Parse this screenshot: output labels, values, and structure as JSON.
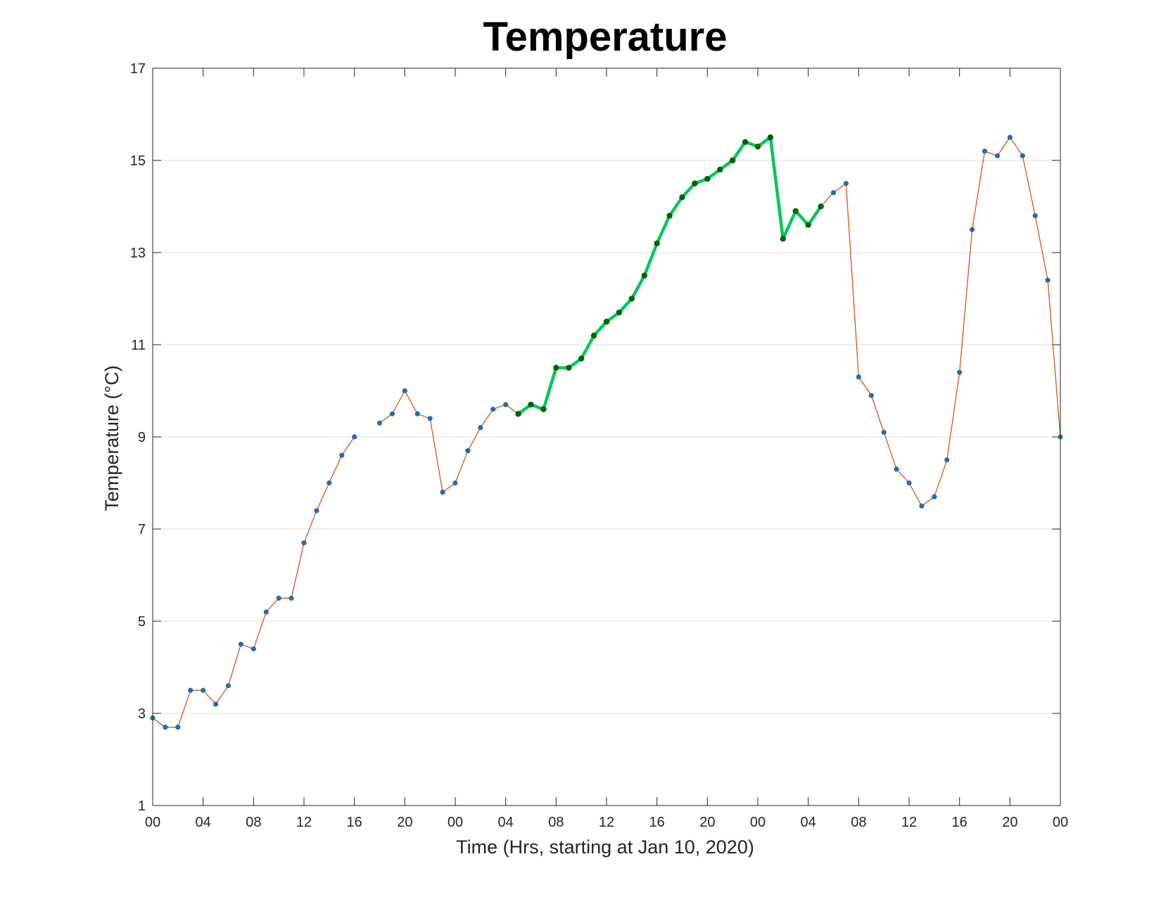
{
  "chart_data": {
    "type": "line",
    "title": "Temperature",
    "xlabel": "Time (Hrs, starting at Jan 10, 2020)",
    "ylabel": "Temperature (°C)",
    "ylim": [
      1,
      17
    ],
    "xlim": [
      0,
      72
    ],
    "grid": "horizontal",
    "x_tick_values": [
      0,
      4,
      8,
      12,
      16,
      20,
      24,
      28,
      32,
      36,
      40,
      44,
      48,
      52,
      56,
      60,
      64,
      68,
      72
    ],
    "x_tick_labels": [
      "00",
      "04",
      "08",
      "12",
      "16",
      "20",
      "00",
      "04",
      "08",
      "12",
      "16",
      "20",
      "00",
      "04",
      "08",
      "12",
      "16",
      "20",
      "00"
    ],
    "y_ticks": [
      1,
      3,
      5,
      7,
      9,
      11,
      13,
      15,
      17
    ],
    "colors": {
      "line": "#d95319",
      "marker": "#1f6fb0",
      "highlight_line": "#00c85a",
      "highlight_marker": "#006400"
    },
    "series": [
      {
        "x": [
          0,
          1,
          2,
          3,
          4,
          5,
          6,
          7,
          8,
          9,
          10,
          11,
          12,
          13,
          14,
          15,
          16,
          17,
          18,
          19,
          20,
          21,
          22,
          23,
          24,
          25,
          26,
          27,
          28,
          29,
          30,
          31,
          32,
          33,
          34,
          35,
          36,
          37,
          38,
          39,
          40,
          41,
          42,
          43,
          44,
          45,
          46,
          47,
          48,
          49,
          50,
          51,
          52,
          53,
          54,
          55,
          56,
          57,
          58,
          59,
          60,
          61,
          62,
          63,
          64,
          65,
          66,
          67,
          68,
          69,
          70,
          71,
          72
        ],
        "y": [
          2.9,
          2.7,
          2.7,
          3.5,
          3.5,
          3.2,
          3.6,
          4.5,
          4.4,
          5.2,
          5.5,
          5.5,
          6.7,
          7.4,
          8.0,
          8.6,
          9.0,
          null,
          9.3,
          9.5,
          10.0,
          9.5,
          9.4,
          7.8,
          8.0,
          8.7,
          9.2,
          9.6,
          9.7,
          9.5,
          9.7,
          9.6,
          10.5,
          10.5,
          10.7,
          11.2,
          11.5,
          11.7,
          12.0,
          12.5,
          13.2,
          13.8,
          14.2,
          14.5,
          14.6,
          14.8,
          15.0,
          15.4,
          15.3,
          15.5,
          13.3,
          13.9,
          13.6,
          14.0,
          14.3,
          14.5,
          10.3,
          9.9,
          9.1,
          8.3,
          8.0,
          7.5,
          7.7,
          8.5,
          10.4,
          13.5,
          15.2,
          15.1,
          15.5,
          15.1,
          13.8,
          12.4,
          9.0
        ]
      },
      {
        "x": [
          29,
          30,
          31,
          32,
          33,
          34,
          35,
          36,
          37,
          38,
          39,
          40,
          41,
          42,
          43,
          44,
          45,
          46,
          47,
          48,
          49,
          50,
          51,
          52,
          53
        ],
        "y": [
          9.5,
          9.7,
          9.6,
          10.5,
          10.5,
          10.7,
          11.2,
          11.5,
          11.7,
          12.0,
          12.5,
          13.2,
          13.8,
          14.2,
          14.5,
          14.6,
          14.8,
          15.0,
          15.4,
          15.3,
          15.5,
          13.3,
          13.9,
          13.6,
          14.0
        ]
      }
    ]
  }
}
